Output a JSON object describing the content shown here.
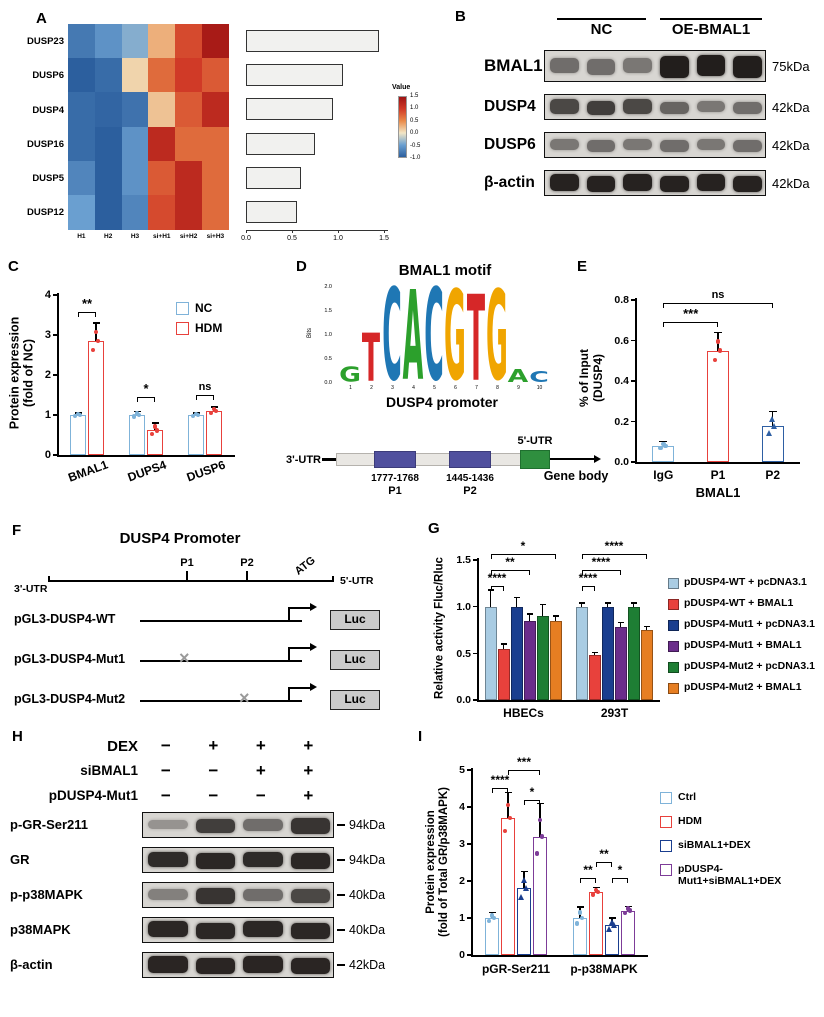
{
  "panels": {
    "A": {
      "label": "A",
      "chart_data": {
        "type": "heatmap",
        "rows": [
          "DUSP23",
          "DUSP6",
          "DUSP4",
          "DUSP16",
          "DUSP5",
          "DUSP12"
        ],
        "cols": [
          "H1",
          "H2",
          "H3",
          "si+H1",
          "si+H2",
          "si+H3"
        ],
        "values": [
          [
            -0.8,
            -0.6,
            -0.4,
            0.3,
            0.9,
            1.4
          ],
          [
            -1.0,
            -0.9,
            0.1,
            0.7,
            1.0,
            0.8
          ],
          [
            -0.9,
            -0.95,
            -0.85,
            0.2,
            0.8,
            1.2
          ],
          [
            -0.9,
            -1.0,
            -0.6,
            1.2,
            0.7,
            0.7
          ],
          [
            -0.7,
            -1.0,
            -0.6,
            0.8,
            1.2,
            0.7
          ],
          [
            -0.5,
            -1.0,
            -0.7,
            0.9,
            1.2,
            0.7
          ]
        ],
        "bar_values": [
          1.45,
          1.05,
          0.95,
          0.75,
          0.6,
          0.55
        ],
        "bar_xticks": [
          "0.0",
          "0.5",
          "1.0",
          "1.5"
        ],
        "bar_xmax": 1.5,
        "colorbar": {
          "title": "Value",
          "ticks": [
            "1.5",
            "1.0",
            "0.5",
            "0.0",
            "-0.5",
            "-1.0"
          ]
        }
      }
    },
    "B": {
      "label": "B",
      "group_labels": [
        "NC",
        "OE-BMAL1"
      ],
      "rows": [
        {
          "name": "BMAL1",
          "kda": "75kDa",
          "bands": [
            0.55,
            0.55,
            0.5,
            0.97,
            0.97,
            0.97
          ]
        },
        {
          "name": "DUSP4",
          "kda": "42kDa",
          "bands": [
            0.75,
            0.8,
            0.75,
            0.6,
            0.5,
            0.55
          ]
        },
        {
          "name": "DUSP6",
          "kda": "42kDa",
          "bands": [
            0.5,
            0.55,
            0.5,
            0.55,
            0.5,
            0.55
          ]
        },
        {
          "name": "β-actin",
          "kda": "42kDa",
          "bands": [
            0.95,
            0.95,
            0.95,
            0.95,
            0.95,
            0.95
          ]
        }
      ]
    },
    "C": {
      "label": "C",
      "chart_data": {
        "type": "bar",
        "ylabel_lines": [
          "Protein expression",
          "(fold of NC)"
        ],
        "yticks": [
          "0",
          "1",
          "2",
          "3",
          "4"
        ],
        "ymax": 4,
        "categories": [
          "BMAL1",
          "DUPS4",
          "DUSP6"
        ],
        "series": [
          {
            "name": "NC",
            "color": "#7fb3d9",
            "values": [
              1.0,
              1.0,
              1.0
            ],
            "err": [
              0.05,
              0.08,
              0.05
            ]
          },
          {
            "name": "HDM",
            "color": "#e8413c",
            "values": [
              2.85,
              0.62,
              1.1
            ],
            "err": [
              0.45,
              0.18,
              0.1
            ]
          }
        ],
        "sig": [
          {
            "cat": 0,
            "text": "**"
          },
          {
            "cat": 1,
            "text": "*"
          },
          {
            "cat": 2,
            "text": "ns"
          }
        ]
      }
    },
    "D": {
      "label": "D",
      "motif_title": "BMAL1 motif",
      "logo": {
        "ylabel": "Bits",
        "yticks": [
          "2.0",
          "1.5",
          "1.0",
          "0.5",
          "0.0"
        ],
        "xticks": [
          "1",
          "2",
          "3",
          "4",
          "5",
          "6",
          "7",
          "8",
          "9",
          "10"
        ],
        "columns": [
          {
            "ch": "G",
            "color": "#2ca02c",
            "h": 0.16
          },
          {
            "ch": "T",
            "color": "#d62728",
            "h": 0.52
          },
          {
            "ch": "C",
            "color": "#1f77b4",
            "h": 1.0
          },
          {
            "ch": "A",
            "color": "#2ca02c",
            "h": 0.97
          },
          {
            "ch": "C",
            "color": "#1f77b4",
            "h": 1.0
          },
          {
            "ch": "G",
            "color": "#f0a500",
            "h": 0.97
          },
          {
            "ch": "T",
            "color": "#d62728",
            "h": 0.93
          },
          {
            "ch": "G",
            "color": "#f0a500",
            "h": 0.97
          },
          {
            "ch": "A",
            "color": "#2ca02c",
            "h": 0.14
          },
          {
            "ch": "C",
            "color": "#1f77b4",
            "h": 0.12
          }
        ]
      },
      "promoter_title": "DUSP4 promoter",
      "diagram": {
        "left_utr": "3'-UTR",
        "right_utr": "5'-UTR",
        "sites": [
          {
            "range": "1777-1768",
            "name": "P1"
          },
          {
            "range": "1445-1436",
            "name": "P2"
          }
        ],
        "gene_body": "Gene body"
      }
    },
    "E": {
      "label": "E",
      "chart_data": {
        "type": "bar",
        "ylabel_lines": [
          "% of Input",
          "(DUSP4)"
        ],
        "yticks": [
          "0.0",
          "0.2",
          "0.4",
          "0.6",
          "0.8"
        ],
        "ymax": 0.8,
        "categories": [
          "IgG",
          "P1",
          "P2"
        ],
        "xlabel": "BMAL1",
        "values": [
          0.08,
          0.55,
          0.18
        ],
        "err": [
          0.02,
          0.09,
          0.07
        ],
        "colors": [
          "#7fb3d9",
          "#e8413c",
          "#2e5fa3"
        ],
        "markers": [
          "circle",
          "circle",
          "triangle"
        ],
        "sig": [
          {
            "from": 0,
            "to": 1,
            "text": "***"
          },
          {
            "from": 0,
            "to": 2,
            "text": "ns"
          }
        ]
      }
    },
    "F": {
      "label": "F",
      "title": "DUSP4 Promoter",
      "axis": {
        "left": "3'-UTR",
        "p1": "P1",
        "p2": "P2",
        "atg": "ATG",
        "right": "5'-UTR"
      },
      "constructs": [
        {
          "name": "pGL3-DUSP4-WT",
          "mut": null,
          "reporter": "Luc"
        },
        {
          "name": "pGL3-DUSP4-Mut1",
          "mut": "P1",
          "reporter": "Luc"
        },
        {
          "name": "pGL3-DUSP4-Mut2",
          "mut": "P2",
          "reporter": "Luc"
        }
      ],
      "mut_symbol": "×"
    },
    "G": {
      "label": "G",
      "chart_data": {
        "type": "bar",
        "ylabel_lines": [
          "Relative activity Fluc/Rluc"
        ],
        "yticks": [
          "0.0",
          "0.5",
          "1.0",
          "1.5"
        ],
        "ymax": 1.5,
        "groups": [
          "HBECs",
          "293T"
        ],
        "series": [
          {
            "name": "pDUSP4-WT + pcDNA3.1",
            "color": "#a9cce3",
            "values": [
              1.0,
              1.0
            ],
            "err": [
              0.18,
              0.04
            ]
          },
          {
            "name": "pDUSP4-WT + BMAL1",
            "color": "#e8413c",
            "values": [
              0.55,
              0.48
            ],
            "err": [
              0.05,
              0.03
            ]
          },
          {
            "name": "pDUSP4-Mut1 + pcDNA3.1",
            "color": "#1a3e8f",
            "values": [
              1.0,
              1.0
            ],
            "err": [
              0.1,
              0.04
            ]
          },
          {
            "name": "pDUSP4-Mut1 + BMAL1",
            "color": "#6b2d8b",
            "values": [
              0.85,
              0.78
            ],
            "err": [
              0.07,
              0.05
            ]
          },
          {
            "name": "pDUSP4-Mut2 + pcDNA3.1",
            "color": "#1e7e34",
            "values": [
              0.9,
              1.0
            ],
            "err": [
              0.12,
              0.04
            ]
          },
          {
            "name": "pDUSP4-Mut2 + BMAL1",
            "color": "#e67e22",
            "values": [
              0.85,
              0.75
            ],
            "err": [
              0.05,
              0.04
            ]
          }
        ],
        "sig": {
          "HBECs": [
            {
              "from": 0,
              "to": 1,
              "text": "****"
            },
            {
              "from": 0,
              "to": 3,
              "text": "**"
            },
            {
              "from": 0,
              "to": 5,
              "text": "*"
            }
          ],
          "293T": [
            {
              "from": 0,
              "to": 1,
              "text": "****"
            },
            {
              "from": 0,
              "to": 3,
              "text": "****"
            },
            {
              "from": 0,
              "to": 5,
              "text": "****"
            }
          ]
        }
      }
    },
    "H": {
      "label": "H",
      "treatments": [
        {
          "name": "DEX",
          "signs": [
            "−",
            "+",
            "+",
            "+"
          ]
        },
        {
          "name": "siBMAL1",
          "signs": [
            "−",
            "−",
            "+",
            "+"
          ]
        },
        {
          "name": "pDUSP4-Mut1",
          "signs": [
            "−",
            "−",
            "−",
            "+"
          ]
        }
      ],
      "rows": [
        {
          "name": "p-GR-Ser211",
          "kda": "94kDa",
          "bands": [
            0.35,
            0.8,
            0.55,
            0.85
          ]
        },
        {
          "name": "GR",
          "kda": "94kDa",
          "bands": [
            0.9,
            0.92,
            0.9,
            0.92
          ]
        },
        {
          "name": "p-p38MAPK",
          "kda": "40kDa",
          "bands": [
            0.45,
            0.85,
            0.55,
            0.75
          ]
        },
        {
          "name": "p38MAPK",
          "kda": "40kDa",
          "bands": [
            0.92,
            0.92,
            0.92,
            0.92
          ]
        },
        {
          "name": "β-actin",
          "kda": "42kDa",
          "bands": [
            0.93,
            0.93,
            0.93,
            0.93
          ]
        }
      ]
    },
    "I": {
      "label": "I",
      "chart_data": {
        "type": "bar",
        "ylabel_lines": [
          "Protein expression",
          "(fold of Total GR/p38MAPK)"
        ],
        "yticks": [
          "0",
          "1",
          "2",
          "3",
          "4",
          "5"
        ],
        "ymax": 5,
        "groups": [
          "pGR-Ser211",
          "p-p38MAPK"
        ],
        "series": [
          {
            "name": "Ctrl",
            "color": "#7fb3d9",
            "values": [
              1.0,
              1.0
            ],
            "err": [
              0.15,
              0.3
            ]
          },
          {
            "name": "HDM",
            "color": "#e8413c",
            "values": [
              3.7,
              1.7
            ],
            "err": [
              0.7,
              0.12
            ]
          },
          {
            "name": "siBMAL1+DEX",
            "color": "#1a3e8f",
            "values": [
              1.8,
              0.8
            ],
            "err": [
              0.45,
              0.2
            ]
          },
          {
            "name": "pDUSP4-Mut1+siBMAL1+DEX",
            "color": "#7d3c98",
            "values": [
              3.2,
              1.2
            ],
            "err": [
              0.9,
              0.12
            ]
          }
        ],
        "sig": {
          "pGR-Ser211": [
            {
              "from": 0,
              "to": 1,
              "text": "****"
            },
            {
              "from": 1,
              "to": 3,
              "text": "***"
            },
            {
              "from": 2,
              "to": 3,
              "text": "*"
            }
          ],
          "p-p38MAPK": [
            {
              "from": 0,
              "to": 1,
              "text": "**"
            },
            {
              "from": 1,
              "to": 2,
              "text": "**"
            },
            {
              "from": 2,
              "to": 3,
              "text": "*"
            }
          ]
        }
      }
    }
  }
}
